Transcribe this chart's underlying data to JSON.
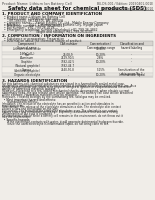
{
  "bg_color": "#f0ede8",
  "header_top_left": "Product Name: Lithium Ion Battery Cell",
  "header_top_right": "BU-DS-001 / Edition: 20150401-001E\nEstablished / Revision: Dec.7.2010",
  "title": "Safety data sheet for chemical products (SDS)",
  "section1_title": "1. PRODUCT AND COMPANY IDENTIFICATION",
  "section1_lines": [
    "  • Product name: Lithium Ion Battery Cell",
    "  • Product code: Cylindrical-type cell",
    "       SV-18650U, SV-18650L, SV-18650A",
    "  • Company name:    Sanyo Electric Co., Ltd., Mobile Energy Company",
    "  • Address:         2021-1, Kamishinden, Sumoto City, Hyogo, Japan",
    "  • Telephone number:  +81-799-26-4111",
    "  • Fax number:  +81-799-26-4128",
    "  • Emergency telephone number (Weekday) +81-799-26-3842",
    "                                  (Night and holiday) +81-799-26-4101"
  ],
  "section2_title": "2. COMPOSITION / INFORMATION ON INGREDIENTS",
  "section2_sub1": "  • Substance or preparation: Preparation",
  "section2_sub2": "  • Information about the chemical nature of product:",
  "table_col_centers": [
    35,
    88,
    130,
    170
  ],
  "table_headers": [
    "Component /\nGeneral name",
    "CAS number",
    "Concentration /\nConcentration range",
    "Classification and\nhazard labeling"
  ],
  "table_rows": [
    [
      "Lithium cobalt oxide\n(LiMnCoO₂)",
      "-",
      "30-60%",
      ""
    ],
    [
      "Iron",
      "26-08-9",
      "10-20%",
      "-"
    ],
    [
      "Aluminum",
      "7429-90-5",
      "2-8%",
      "-"
    ],
    [
      "Graphite\n(Natural graphite)\n(Artificial graphite)",
      "7782-42-5\n7782-44-7",
      "10-20%",
      "-"
    ],
    [
      "Copper",
      "7440-50-8",
      "5-15%",
      "Sensitization of the\nskin group No.2"
    ],
    [
      "Organic electrolyte",
      "-",
      "10-20%",
      "Inflammable liquid"
    ]
  ],
  "section3_title": "3. HAZARDS IDENTIFICATION",
  "section3_para": [
    "For this battery cell, chemical substances are stored in a hermetically sealed metal case, designed to withstand temperatures encountered in portable electronics during normal use. As a result, during normal use, there is no physical danger of ignition or evaporation and therefore danger of hazardous materials leakage.",
    "However, if exposed to a fire, added mechanical shocks, decomposed, when electric current abnormally flows, the gas release vent will be operated. The battery cell case will be breached of the extreme. Hazardous materials may be released.",
    "Moreover, if heated strongly by the surrounding fire, solid gas may be emitted."
  ],
  "section3_bullet1": "  • Most important hazard and effects:",
  "section3_health": "      Human health effects:",
  "section3_health_lines": [
    "          Inhalation: The release of the electrolyte has an anesthetic action and stimulates in respiratory tract.",
    "          Skin contact: The release of the electrolyte stimulates a skin. The electrolyte skin contact causes a sore and stimulation on the skin.",
    "          Eye contact: The release of the electrolyte stimulates eyes. The electrolyte eye contact causes a sore and stimulation on the eye. Especially, a substance that causes a strong inflammation of the eyes is contained.",
    "          Environmental effects: Since a battery cell remains in the environment, do not throw out it into the environment."
  ],
  "section3_bullet2": "  • Specific hazards:",
  "section3_specific": [
    "      If the electrolyte contacts with water, it will generate detrimental hydrogen fluoride.",
    "      Since the used electrolyte is inflammable liquid, do not bring close to fire."
  ]
}
